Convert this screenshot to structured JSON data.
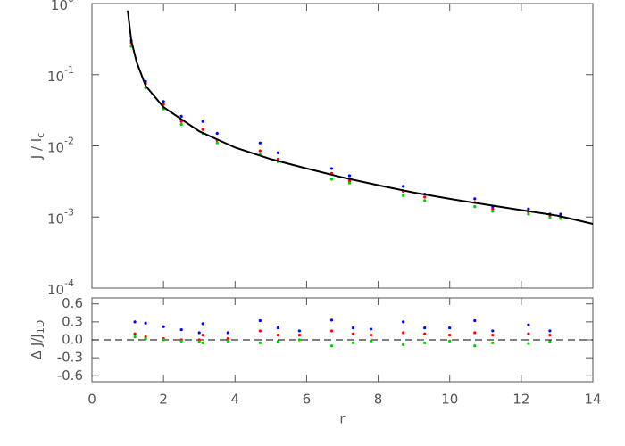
{
  "chart_data": [
    {
      "type": "scatter",
      "ylabel": "J / I",
      "ylabel_sub": "c",
      "xlim": [
        0,
        14
      ],
      "xticks": [
        0,
        2,
        4,
        6,
        8,
        10,
        12,
        14
      ],
      "ylim": [
        0.0001,
        1
      ],
      "ylog": true,
      "yticks": [
        {
          "value": 1,
          "label": "10",
          "sup": "0"
        },
        {
          "value": 0.1,
          "label": "10",
          "sup": "-1"
        },
        {
          "value": 0.01,
          "label": "10",
          "sup": "-2"
        },
        {
          "value": 0.001,
          "label": "10",
          "sup": "-3"
        },
        {
          "value": 0.0001,
          "label": "10",
          "sup": "-4"
        }
      ],
      "series": [
        {
          "mode": "markers",
          "color": "#0000ff",
          "x": [
            1.1,
            1.5,
            2,
            2.5,
            3.1,
            3.5,
            4.7,
            5.2,
            6.7,
            7.2,
            8.7,
            9.3,
            10.7,
            11.2,
            12.2,
            12.8,
            13.1
          ],
          "values": [
            0.3,
            0.08,
            0.042,
            0.026,
            0.022,
            0.015,
            0.011,
            0.008,
            0.0048,
            0.0038,
            0.0027,
            0.0021,
            0.0018,
            0.0014,
            0.0013,
            0.0011,
            0.0011
          ]
        },
        {
          "mode": "markers",
          "color": "#ff0000",
          "x": [
            1.1,
            1.5,
            2,
            2.5,
            3.1,
            3.5,
            4.7,
            5.2,
            6.7,
            7.2,
            8.7,
            9.3,
            10.7,
            11.2,
            12.2,
            12.8,
            13.1
          ],
          "values": [
            0.28,
            0.075,
            0.038,
            0.022,
            0.017,
            0.012,
            0.0085,
            0.0065,
            0.0041,
            0.0032,
            0.0023,
            0.0019,
            0.0016,
            0.0013,
            0.00118,
            0.00105,
            0.001
          ]
        },
        {
          "mode": "markers",
          "color": "#00cc00",
          "x": [
            1.1,
            1.5,
            2,
            2.5,
            3.1,
            3.5,
            4.7,
            5.2,
            6.7,
            7.2,
            8.7,
            9.3,
            10.7,
            11.2,
            12.2,
            12.8,
            13.1
          ],
          "values": [
            0.25,
            0.065,
            0.033,
            0.02,
            0.015,
            0.011,
            0.0075,
            0.006,
            0.0034,
            0.003,
            0.002,
            0.0017,
            0.0014,
            0.0012,
            0.0011,
            0.00098,
            0.00095
          ]
        },
        {
          "mode": "line",
          "color": "#000000",
          "x": [
            1,
            1.1,
            1.25,
            1.5,
            2,
            3,
            4,
            5,
            6,
            7,
            8,
            9,
            10,
            11,
            12,
            13,
            14
          ],
          "values": [
            0.8,
            0.3,
            0.15,
            0.07,
            0.035,
            0.016,
            0.0095,
            0.0065,
            0.0048,
            0.0036,
            0.0028,
            0.0022,
            0.0018,
            0.0015,
            0.00125,
            0.00105,
            0.0008
          ]
        }
      ]
    },
    {
      "type": "scatter",
      "xlabel": "r",
      "ylabel": "Δ J/J",
      "ylabel_sub": "1D",
      "xlim": [
        0,
        14
      ],
      "xticks": [
        0,
        2,
        4,
        6,
        8,
        10,
        12,
        14
      ],
      "ylim": [
        -0.7,
        0.7
      ],
      "yticks": [
        0.6,
        0.3,
        {
          "value": 0,
          "label": "0.0"
        },
        -0.3,
        -0.6
      ],
      "hline": 0,
      "series": [
        {
          "mode": "markers",
          "color": "#0000ff",
          "x": [
            1.2,
            1.5,
            2,
            2.5,
            3,
            3.1,
            3.8,
            4.7,
            5.2,
            5.8,
            6.7,
            7.3,
            7.8,
            8.7,
            9.3,
            10,
            10.7,
            11.2,
            12.2,
            12.8
          ],
          "values": [
            0.3,
            0.28,
            0.22,
            0.17,
            0.12,
            0.27,
            0.12,
            0.32,
            0.2,
            0.15,
            0.33,
            0.2,
            0.18,
            0.3,
            0.2,
            0.2,
            0.32,
            0.15,
            0.25,
            0.15
          ]
        },
        {
          "mode": "markers",
          "color": "#ff0000",
          "x": [
            1.2,
            1.5,
            2,
            2.5,
            3,
            3.1,
            3.8,
            4.7,
            5.2,
            5.8,
            6.7,
            7.3,
            7.8,
            8.7,
            9.3,
            10,
            10.7,
            11.2,
            12.2,
            12.8
          ],
          "values": [
            0.1,
            0.05,
            0.02,
            0.0,
            0.0,
            0.08,
            0.02,
            0.15,
            0.08,
            0.08,
            0.15,
            0.1,
            0.08,
            0.12,
            0.1,
            0.08,
            0.12,
            0.08,
            0.1,
            0.08
          ]
        },
        {
          "mode": "markers",
          "color": "#00cc00",
          "x": [
            1.2,
            1.5,
            2,
            2.5,
            3,
            3.1,
            3.8,
            4.7,
            5.2,
            5.8,
            6.7,
            7.3,
            7.8,
            8.7,
            9.3,
            10,
            10.7,
            11.2,
            12.2,
            12.8
          ],
          "values": [
            0.05,
            0.02,
            0.0,
            -0.02,
            -0.03,
            -0.05,
            -0.02,
            -0.05,
            -0.03,
            0,
            -0.1,
            -0.05,
            -0.02,
            -0.08,
            -0.05,
            -0.02,
            -0.1,
            -0.05,
            -0.06,
            -0.03
          ]
        }
      ]
    }
  ]
}
